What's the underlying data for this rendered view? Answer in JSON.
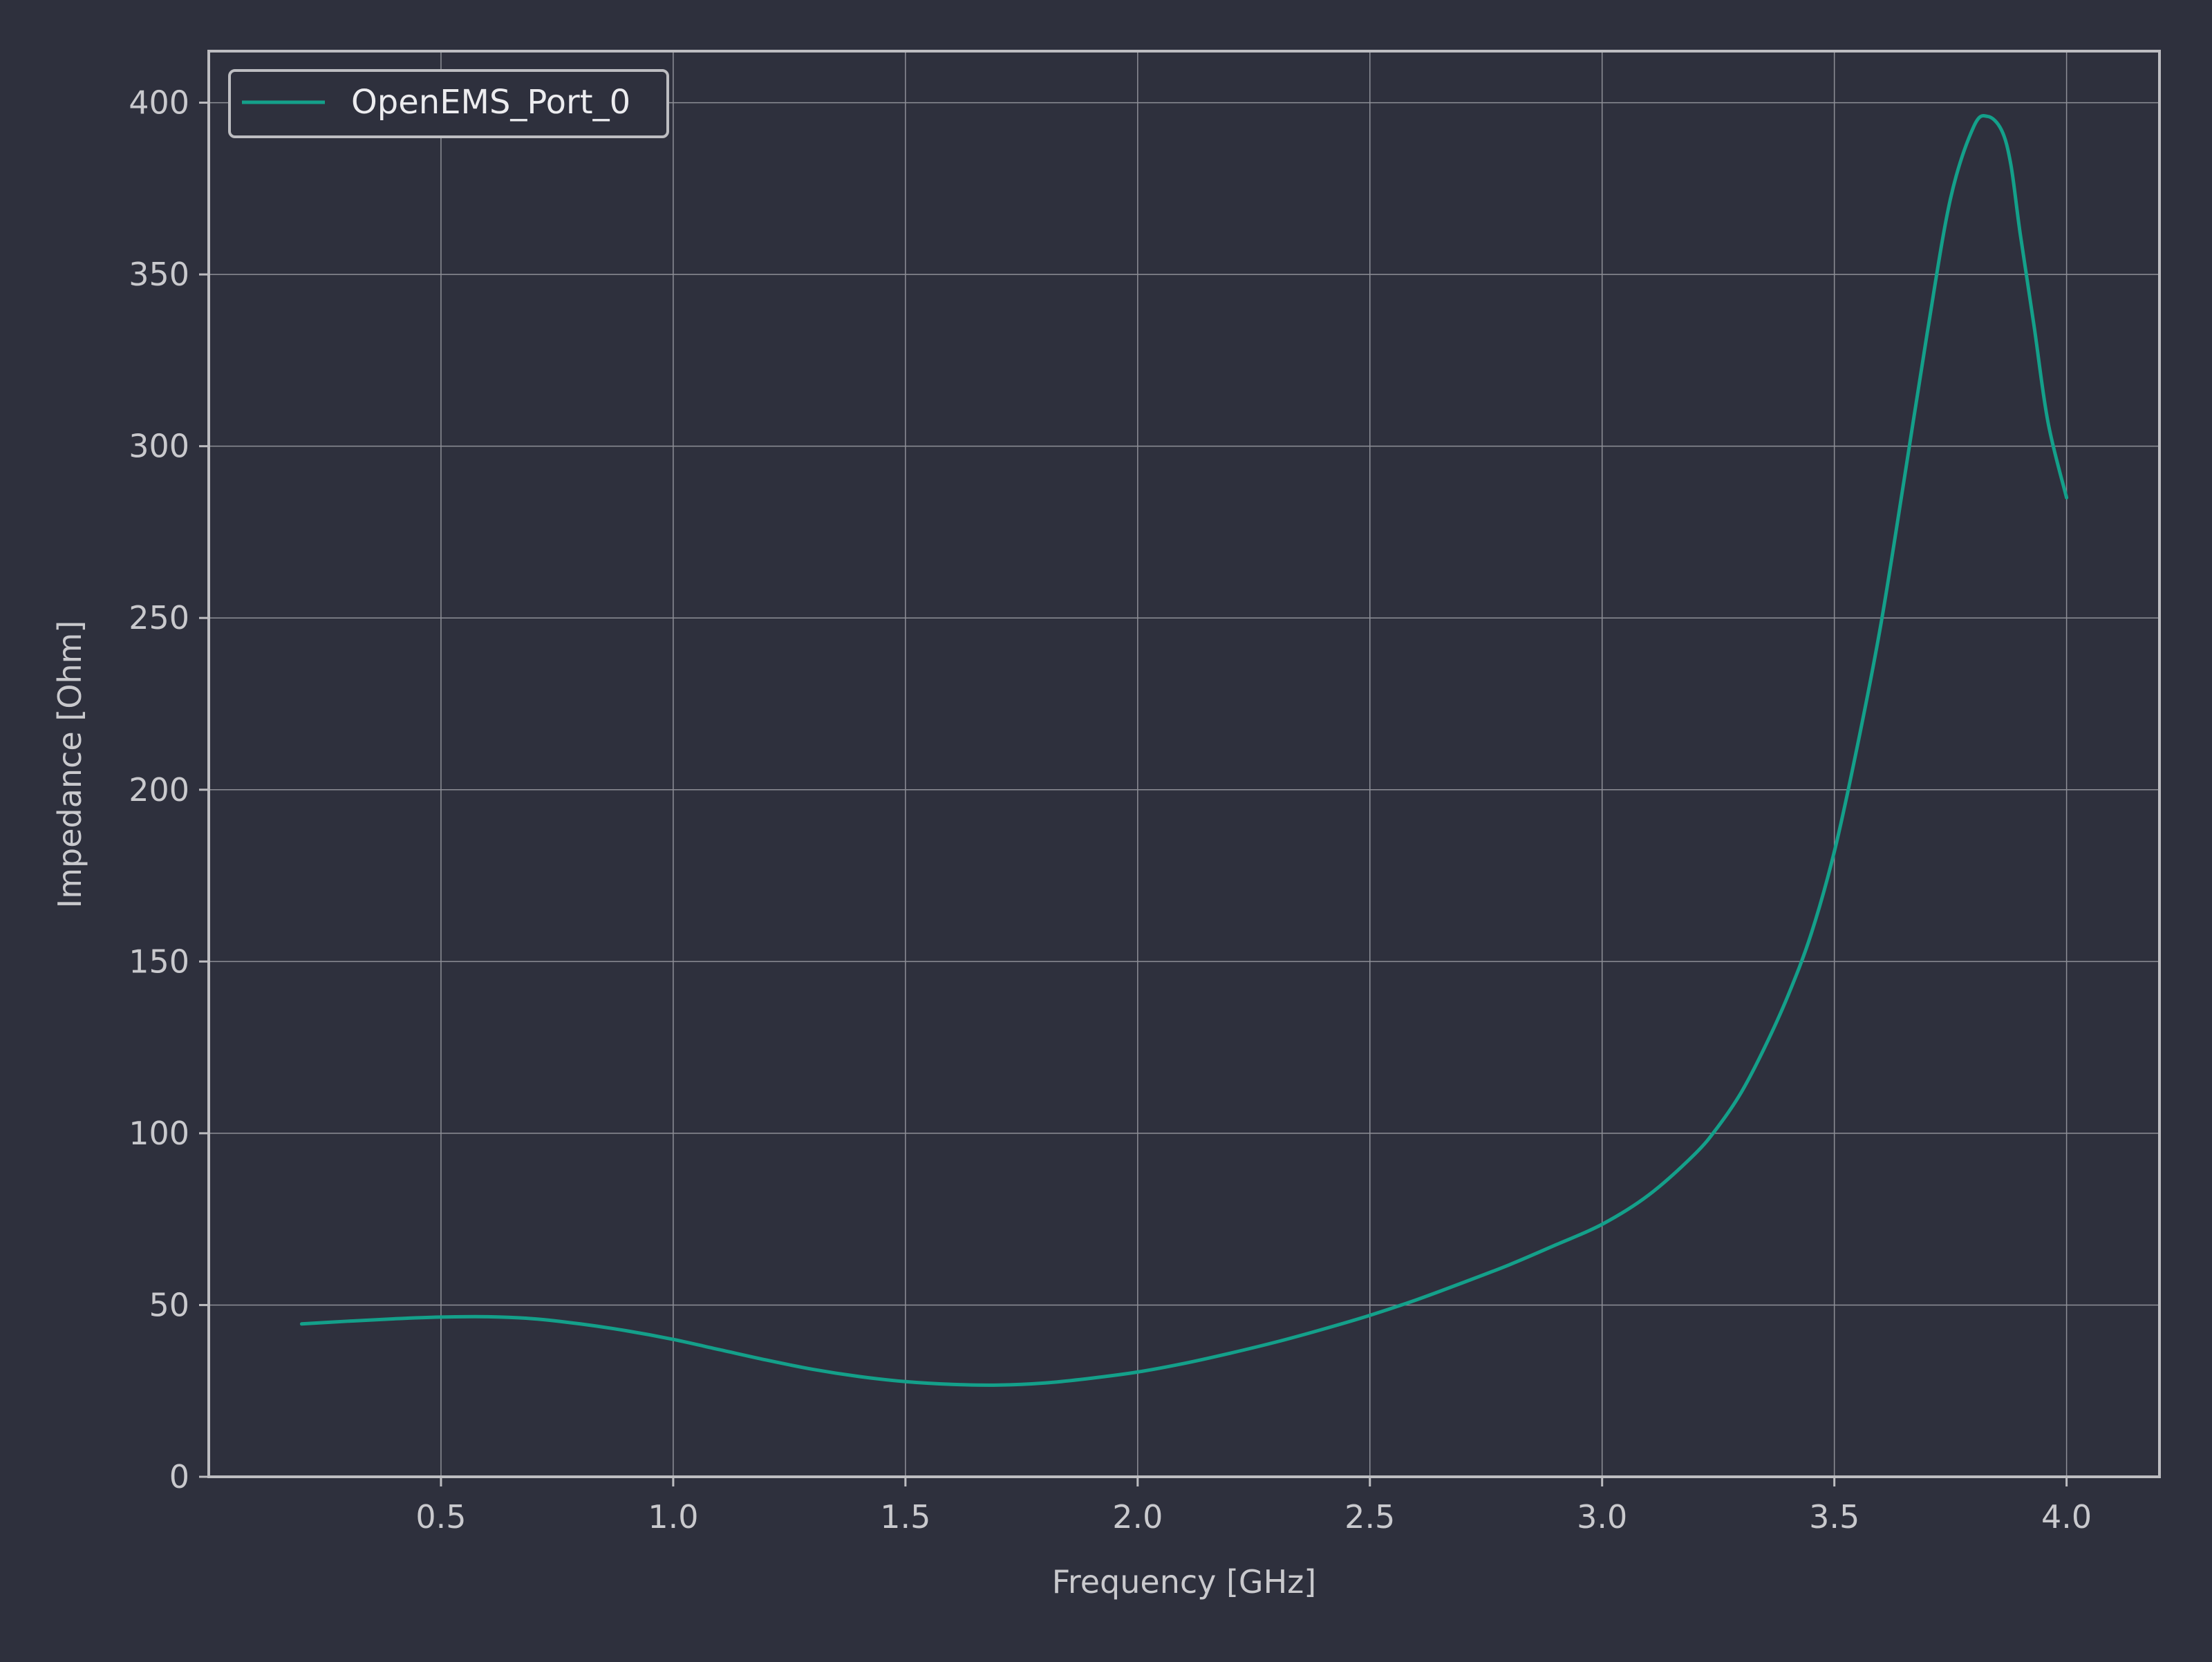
{
  "theme": {
    "background": "#2e303d",
    "axis_color": "#bdbdc1",
    "grid_color": "#8e8f97",
    "text_color": "#c9c9cd",
    "legend_text_color": "#ececef",
    "series_color": "#14a08a"
  },
  "chart_data": {
    "type": "line",
    "title": "",
    "xlabel": "Frequency [GHz]",
    "ylabel": "Impedance [Ohm]",
    "xlim": [
      0.0,
      4.2
    ],
    "ylim": [
      0,
      415
    ],
    "xticks": [
      0.5,
      1.0,
      1.5,
      2.0,
      2.5,
      3.0,
      3.5,
      4.0
    ],
    "xtick_labels": [
      "0.5",
      "1.0",
      "1.5",
      "2.0",
      "2.5",
      "3.0",
      "3.5",
      "4.0"
    ],
    "yticks": [
      0,
      50,
      100,
      150,
      200,
      250,
      300,
      350,
      400
    ],
    "ytick_labels": [
      "0",
      "50",
      "100",
      "150",
      "200",
      "250",
      "300",
      "350",
      "400"
    ],
    "grid": true,
    "legend": {
      "placement": "top-left"
    },
    "series": [
      {
        "name": "OpenEMS_Port_0",
        "color": "#14a08a",
        "x": [
          0.2,
          0.3,
          0.4,
          0.5,
          0.6,
          0.7,
          0.8,
          0.9,
          1.0,
          1.1,
          1.2,
          1.3,
          1.4,
          1.5,
          1.6,
          1.7,
          1.8,
          1.9,
          2.0,
          2.1,
          2.2,
          2.3,
          2.4,
          2.5,
          2.6,
          2.7,
          2.8,
          2.9,
          3.0,
          3.1,
          3.2,
          3.25,
          3.3,
          3.35,
          3.4,
          3.45,
          3.5,
          3.55,
          3.6,
          3.65,
          3.7,
          3.75,
          3.8,
          3.83,
          3.86,
          3.88,
          3.9,
          3.93,
          3.96,
          4.0
        ],
        "y": [
          44.5,
          45.3,
          46.0,
          46.5,
          46.6,
          46.0,
          44.5,
          42.5,
          40.0,
          37.0,
          34.0,
          31.3,
          29.2,
          27.7,
          26.9,
          26.7,
          27.3,
          28.7,
          30.5,
          33.0,
          36.0,
          39.3,
          43.0,
          47.0,
          51.5,
          56.5,
          61.7,
          67.5,
          73.5,
          82.0,
          94.0,
          102.0,
          112.0,
          125.0,
          140.0,
          158.0,
          182.0,
          213.0,
          248.0,
          290.0,
          333.0,
          372.0,
          393.0,
          396.0,
          392.0,
          382.0,
          362.0,
          335.0,
          307.0,
          285.0
        ]
      }
    ]
  }
}
